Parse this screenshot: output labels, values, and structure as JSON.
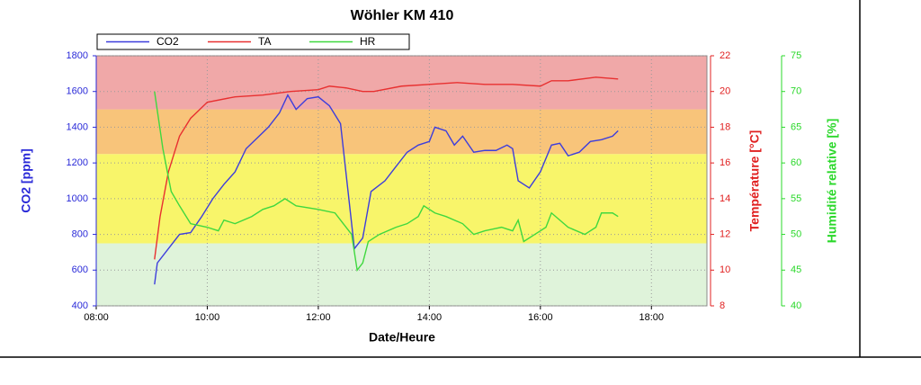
{
  "chart_data": {
    "type": "line",
    "title": "Wöhler KM 410",
    "x_label": "Date/Heure",
    "y_label": "CO2 [ppm]",
    "y2_label": "Température [°C]",
    "y3_label": "Humidité relative [%]",
    "xlim": [
      8,
      19
    ],
    "xticks": [
      {
        "value": 8,
        "label": "08:00"
      },
      {
        "value": 10,
        "label": "10:00"
      },
      {
        "value": 12,
        "label": "12:00"
      },
      {
        "value": 14,
        "label": "14:00"
      },
      {
        "value": 16,
        "label": "16:00"
      },
      {
        "value": 18,
        "label": "18:00"
      }
    ],
    "ylim": [
      400,
      1800
    ],
    "yticks": [
      400,
      600,
      800,
      1000,
      1200,
      1400,
      1600,
      1800
    ],
    "y2lim": [
      8,
      22
    ],
    "y2ticks": [
      8,
      10,
      12,
      14,
      16,
      18,
      20,
      22
    ],
    "y3lim": [
      40,
      75
    ],
    "y3ticks": [
      40,
      45,
      50,
      55,
      60,
      65,
      70,
      75
    ],
    "grid": true,
    "bands": [
      {
        "from": 400,
        "to": 750,
        "color": "#dff3da"
      },
      {
        "from": 750,
        "to": 1250,
        "color": "#f8f56a"
      },
      {
        "from": 1250,
        "to": 1500,
        "color": "#f8c47a"
      },
      {
        "from": 1500,
        "to": 1800,
        "color": "#f0a8a8"
      }
    ],
    "series": [
      {
        "name": "CO2",
        "color": "#3d3ddc",
        "axis": "y",
        "x": [
          9.05,
          9.1,
          9.3,
          9.5,
          9.7,
          9.9,
          10.1,
          10.3,
          10.5,
          10.7,
          10.9,
          11.1,
          11.3,
          11.45,
          11.6,
          11.8,
          12.0,
          12.2,
          12.4,
          12.55,
          12.65,
          12.8,
          12.95,
          13.2,
          13.4,
          13.6,
          13.8,
          14.0,
          14.1,
          14.3,
          14.45,
          14.6,
          14.8,
          15.0,
          15.2,
          15.4,
          15.5,
          15.6,
          15.8,
          16.0,
          16.2,
          16.35,
          16.5,
          16.7,
          16.9,
          17.1,
          17.3,
          17.4
        ],
        "values": [
          520,
          640,
          720,
          800,
          810,
          900,
          1000,
          1080,
          1150,
          1280,
          1340,
          1400,
          1480,
          1580,
          1500,
          1560,
          1570,
          1520,
          1420,
          1000,
          720,
          780,
          1040,
          1100,
          1180,
          1260,
          1300,
          1320,
          1400,
          1380,
          1300,
          1350,
          1260,
          1270,
          1270,
          1300,
          1280,
          1100,
          1060,
          1150,
          1300,
          1310,
          1240,
          1260,
          1320,
          1330,
          1350,
          1380
        ]
      },
      {
        "name": "TA",
        "color": "#e83030",
        "axis": "y2",
        "x": [
          9.05,
          9.15,
          9.3,
          9.5,
          9.7,
          10.0,
          10.5,
          11.0,
          11.5,
          12.0,
          12.2,
          12.5,
          12.8,
          13.0,
          13.5,
          14.0,
          14.5,
          15.0,
          15.5,
          16.0,
          16.2,
          16.5,
          17.0,
          17.4
        ],
        "values": [
          10.6,
          13,
          15.5,
          17.5,
          18.5,
          19.4,
          19.7,
          19.8,
          20.0,
          20.1,
          20.3,
          20.2,
          20.0,
          20.0,
          20.3,
          20.4,
          20.5,
          20.4,
          20.4,
          20.3,
          20.6,
          20.6,
          20.8,
          20.7
        ]
      },
      {
        "name": "HR",
        "color": "#3fd83f",
        "axis": "y3",
        "x": [
          9.05,
          9.2,
          9.35,
          9.5,
          9.7,
          10.0,
          10.2,
          10.3,
          10.5,
          10.8,
          11.0,
          11.2,
          11.4,
          11.6,
          12.0,
          12.3,
          12.6,
          12.7,
          12.8,
          12.9,
          13.1,
          13.4,
          13.6,
          13.8,
          13.9,
          14.1,
          14.3,
          14.6,
          14.8,
          15.0,
          15.3,
          15.5,
          15.6,
          15.7,
          15.9,
          16.1,
          16.2,
          16.5,
          16.8,
          17.0,
          17.1,
          17.3,
          17.4
        ],
        "values": [
          70,
          62,
          56,
          54,
          51.5,
          51,
          50.5,
          52,
          51.5,
          52.5,
          53.5,
          54,
          55,
          54,
          53.5,
          53,
          50,
          45,
          46,
          49,
          50,
          51,
          51.5,
          52.5,
          54,
          53,
          52.5,
          51.5,
          50,
          50.5,
          51,
          50.5,
          52,
          49,
          50,
          51,
          53,
          51,
          50,
          51,
          53,
          53,
          52.5
        ]
      }
    ]
  }
}
